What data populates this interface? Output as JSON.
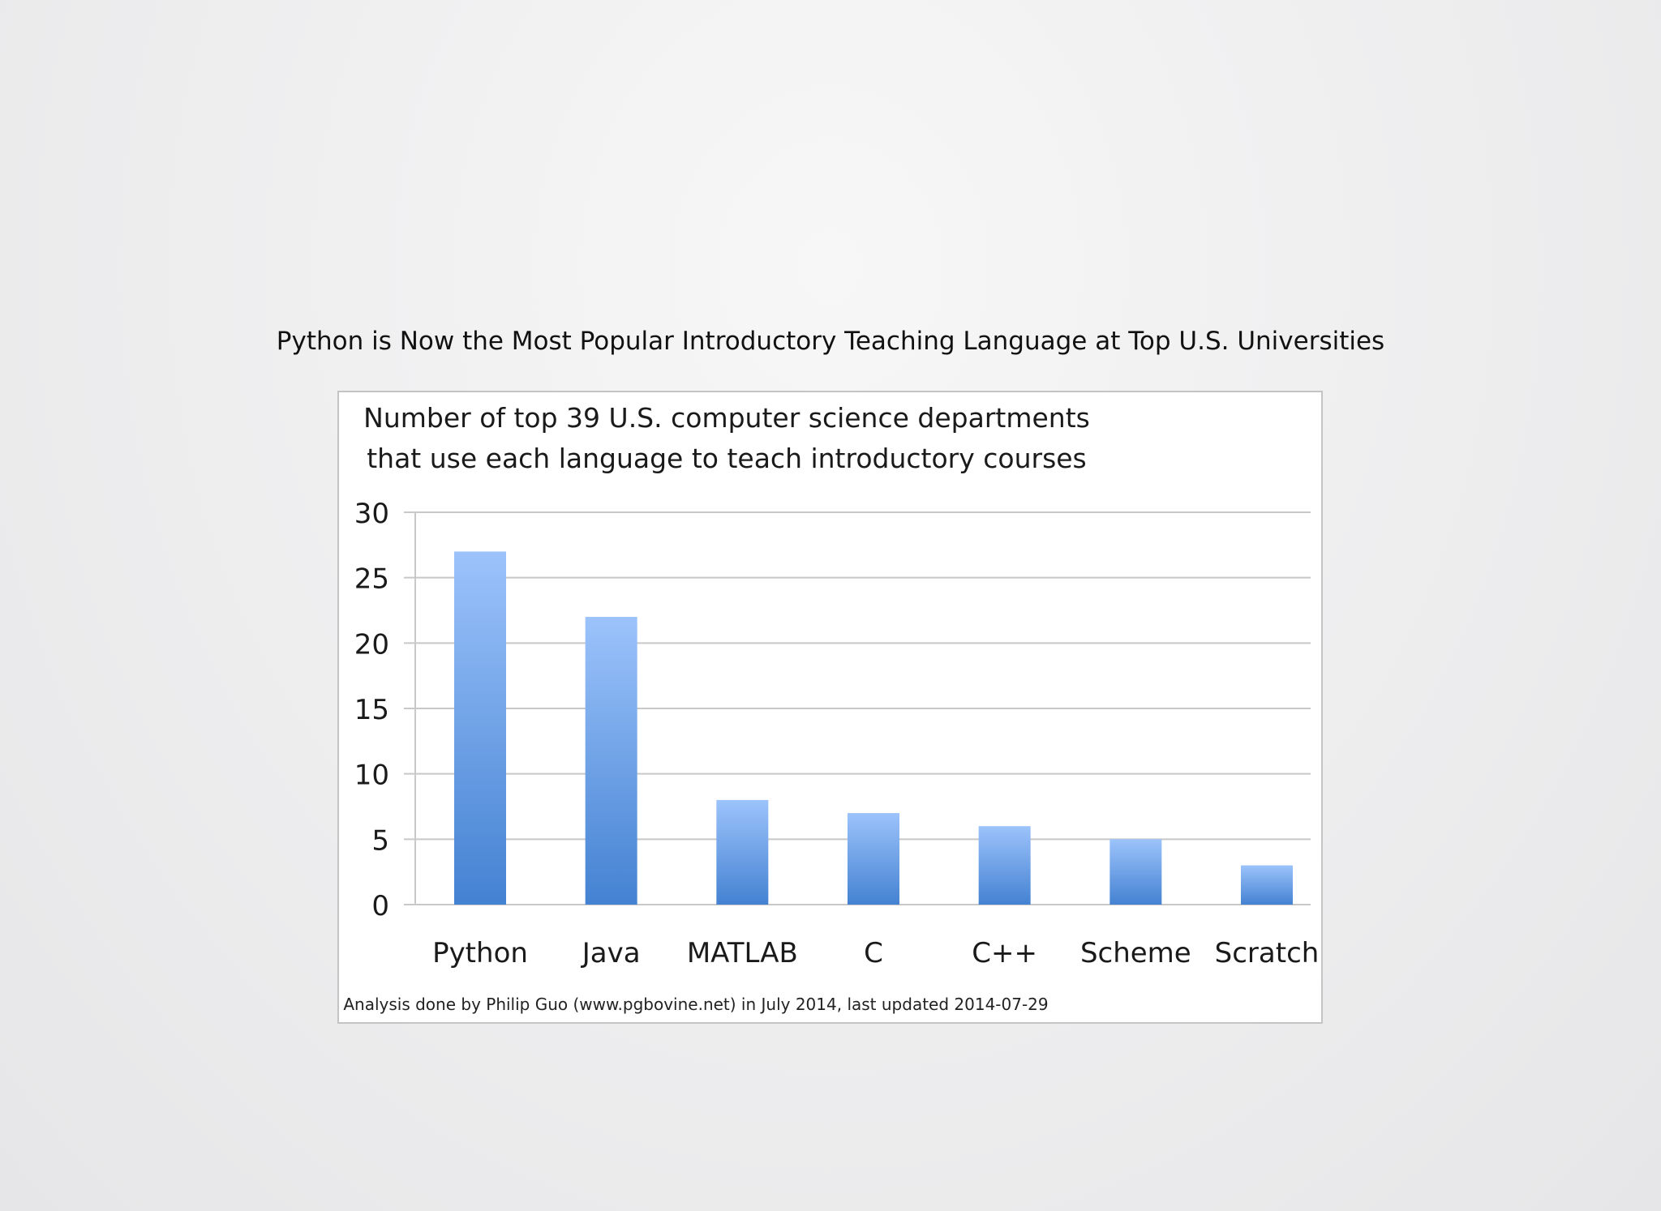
{
  "slide": {
    "title": "Python is Now the Most Popular Introductory Teaching Language at Top U.S. Universities"
  },
  "chart_data": {
    "type": "bar",
    "title": "Number of top 39 U.S. computer science departments",
    "subtitle": "that use each language to teach introductory courses",
    "categories": [
      "Python",
      "Java",
      "MATLAB",
      "C",
      "C++",
      "Scheme",
      "Scratch"
    ],
    "values": [
      27,
      22,
      8,
      7,
      6,
      5,
      3
    ],
    "ylim": [
      0,
      30
    ],
    "yticks": [
      0,
      5,
      10,
      15,
      20,
      25,
      30
    ],
    "xlabel": "",
    "ylabel": "",
    "grid": true,
    "legend": "none",
    "footnote": "Analysis done by Philip Guo (www.pgbovine.net) in July 2014, last updated 2014-07-29",
    "colors": {
      "bar_top": "#9cc3fb",
      "bar_bottom": "#4482d2",
      "grid": "#c8c8c8",
      "text": "#1a1a1a"
    }
  }
}
